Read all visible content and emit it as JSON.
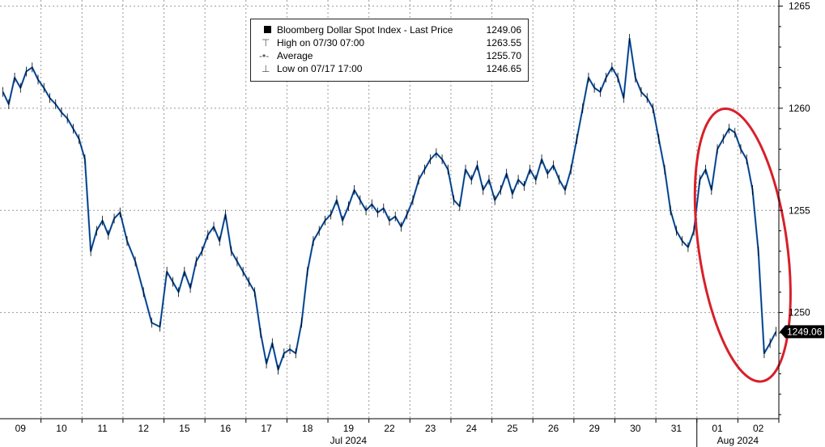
{
  "chart_data": {
    "type": "candlestick",
    "series_name": "Bloomberg Dollar Spot Index - Last Price",
    "last_price": 1249.06,
    "last_price_label": "1249.06",
    "y_axis_side": "right",
    "ylim": [
      1244.8,
      1265.3
    ],
    "yticks": [
      1250,
      1255,
      1260,
      1265
    ],
    "grid": true,
    "x_ticks": [
      "09",
      "10",
      "11",
      "12",
      "15",
      "16",
      "17",
      "18",
      "19",
      "22",
      "23",
      "24",
      "25",
      "26",
      "29",
      "30",
      "31",
      "01",
      "02"
    ],
    "x_groups": [
      {
        "label": "Jul 2024",
        "start": "09",
        "end": "31"
      },
      {
        "label": "Aug 2024",
        "start": "01",
        "end": "02"
      }
    ],
    "legend": {
      "rows": [
        {
          "label": "Bloomberg Dollar Spot Index - Last Price",
          "value": "1249.06"
        },
        {
          "label": "High on 07/30 07:00",
          "value": "1263.55"
        },
        {
          "label": "Average",
          "value": "1255.70"
        },
        {
          "label": "Low on 07/17 17:00",
          "value": "1246.65"
        }
      ],
      "position": "top-center"
    },
    "annotation": {
      "type": "ellipse",
      "color": "#d8202a",
      "around": [
        "01",
        "02"
      ]
    },
    "path_points": [
      [
        "09",
        1260.8
      ],
      [
        "09",
        1260.2
      ],
      [
        "09",
        1261.5
      ],
      [
        "09",
        1261.0
      ],
      [
        "09",
        1261.8
      ],
      [
        "09",
        1262.0
      ],
      [
        "09",
        1261.4
      ],
      [
        "10",
        1261.0
      ],
      [
        "10",
        1260.5
      ],
      [
        "10",
        1260.2
      ],
      [
        "10",
        1259.8
      ],
      [
        "10",
        1259.5
      ],
      [
        "10",
        1259.0
      ],
      [
        "10",
        1258.5
      ],
      [
        "11",
        1257.5
      ],
      [
        "11",
        1253.0
      ],
      [
        "11",
        1254.0
      ],
      [
        "11",
        1254.5
      ],
      [
        "11",
        1253.8
      ],
      [
        "11",
        1254.6
      ],
      [
        "11",
        1254.9
      ],
      [
        "12",
        1253.5
      ],
      [
        "12",
        1252.5
      ],
      [
        "12",
        1251.0
      ],
      [
        "12",
        1249.5
      ],
      [
        "12",
        1249.3
      ],
      [
        "15",
        1252.0
      ],
      [
        "15",
        1251.5
      ],
      [
        "15",
        1251.0
      ],
      [
        "15",
        1252.0
      ],
      [
        "15",
        1251.2
      ],
      [
        "15",
        1252.5
      ],
      [
        "15",
        1253.0
      ],
      [
        "16",
        1253.8
      ],
      [
        "16",
        1254.2
      ],
      [
        "16",
        1253.5
      ],
      [
        "16",
        1254.8
      ],
      [
        "16",
        1253.0
      ],
      [
        "16",
        1252.5
      ],
      [
        "16",
        1252.0
      ],
      [
        "17",
        1251.5
      ],
      [
        "17",
        1251.0
      ],
      [
        "17",
        1249.0
      ],
      [
        "17",
        1247.5
      ],
      [
        "17",
        1248.5
      ],
      [
        "17",
        1247.2
      ],
      [
        "17",
        1248.0
      ],
      [
        "18",
        1248.2
      ],
      [
        "18",
        1248.0
      ],
      [
        "18",
        1249.5
      ],
      [
        "18",
        1252.0
      ],
      [
        "18",
        1253.5
      ],
      [
        "18",
        1254.0
      ],
      [
        "18",
        1254.5
      ],
      [
        "19",
        1254.8
      ],
      [
        "19",
        1255.5
      ],
      [
        "19",
        1254.5
      ],
      [
        "19",
        1255.2
      ],
      [
        "19",
        1256.0
      ],
      [
        "19",
        1255.5
      ],
      [
        "19",
        1255.0
      ],
      [
        "22",
        1255.3
      ],
      [
        "22",
        1254.9
      ],
      [
        "22",
        1255.1
      ],
      [
        "22",
        1254.5
      ],
      [
        "22",
        1254.7
      ],
      [
        "22",
        1254.2
      ],
      [
        "22",
        1254.8
      ],
      [
        "23",
        1255.5
      ],
      [
        "23",
        1256.5
      ],
      [
        "23",
        1257.0
      ],
      [
        "23",
        1257.5
      ],
      [
        "23",
        1257.8
      ],
      [
        "23",
        1257.5
      ],
      [
        "23",
        1257.0
      ],
      [
        "24",
        1255.5
      ],
      [
        "24",
        1255.2
      ],
      [
        "24",
        1257.0
      ],
      [
        "24",
        1256.5
      ],
      [
        "24",
        1257.2
      ],
      [
        "24",
        1256.0
      ],
      [
        "24",
        1256.5
      ],
      [
        "25",
        1255.5
      ],
      [
        "25",
        1256.0
      ],
      [
        "25",
        1256.8
      ],
      [
        "25",
        1255.8
      ],
      [
        "25",
        1256.5
      ],
      [
        "25",
        1256.2
      ],
      [
        "25",
        1257.0
      ],
      [
        "26",
        1256.5
      ],
      [
        "26",
        1257.5
      ],
      [
        "26",
        1256.8
      ],
      [
        "26",
        1257.2
      ],
      [
        "26",
        1256.5
      ],
      [
        "26",
        1256.0
      ],
      [
        "26",
        1257.0
      ],
      [
        "29",
        1258.5
      ],
      [
        "29",
        1260.0
      ],
      [
        "29",
        1261.5
      ],
      [
        "29",
        1261.0
      ],
      [
        "29",
        1260.8
      ],
      [
        "29",
        1261.5
      ],
      [
        "29",
        1262.0
      ],
      [
        "30",
        1261.5
      ],
      [
        "30",
        1260.5
      ],
      [
        "30",
        1263.4
      ],
      [
        "30",
        1261.5
      ],
      [
        "30",
        1260.8
      ],
      [
        "30",
        1260.5
      ],
      [
        "30",
        1260.0
      ],
      [
        "31",
        1258.5
      ],
      [
        "31",
        1257.0
      ],
      [
        "31",
        1255.0
      ],
      [
        "31",
        1254.0
      ],
      [
        "31",
        1253.5
      ],
      [
        "31",
        1253.2
      ],
      [
        "31",
        1254.0
      ],
      [
        "01",
        1256.5
      ],
      [
        "01",
        1257.0
      ],
      [
        "01",
        1256.0
      ],
      [
        "01",
        1258.0
      ],
      [
        "01",
        1258.5
      ],
      [
        "01",
        1259.0
      ],
      [
        "01",
        1258.8
      ],
      [
        "02",
        1258.0
      ],
      [
        "02",
        1257.5
      ],
      [
        "02",
        1256.0
      ],
      [
        "02",
        1253.0
      ],
      [
        "02",
        1248.0
      ],
      [
        "02",
        1248.5
      ],
      [
        "02",
        1249.06
      ]
    ]
  }
}
